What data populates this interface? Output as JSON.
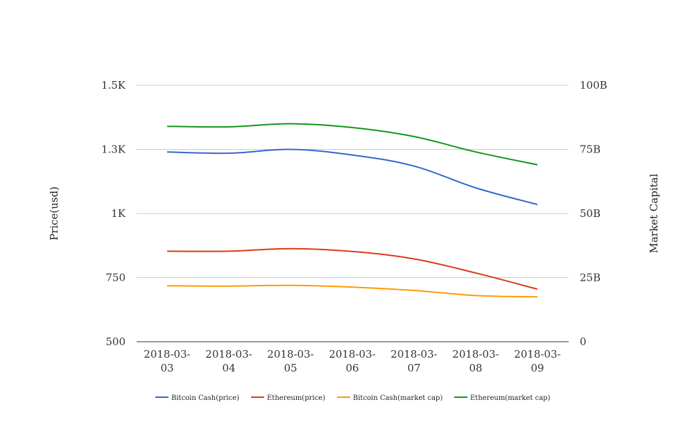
{
  "chart_data": {
    "type": "line",
    "title": "",
    "x": [
      "2018-03-03",
      "2018-03-04",
      "2018-03-05",
      "2018-03-06",
      "2018-03-07",
      "2018-03-08",
      "2018-03-09"
    ],
    "x_labels": [
      [
        "2018-03-",
        "03"
      ],
      [
        "2018-03-",
        "04"
      ],
      [
        "2018-03-",
        "05"
      ],
      [
        "2018-03-",
        "06"
      ],
      [
        "2018-03-",
        "07"
      ],
      [
        "2018-03-",
        "08"
      ],
      [
        "2018-03-",
        "09"
      ]
    ],
    "y_left": {
      "label": "Price(usd)",
      "range": [
        500,
        1500
      ],
      "ticks": [
        500,
        750,
        1000,
        1250,
        1500
      ],
      "tick_labels": [
        "500",
        "750",
        "1K",
        "1.3K",
        "1.5K"
      ]
    },
    "y_right": {
      "label": "Market Capital",
      "range": [
        0,
        100000000000
      ],
      "ticks": [
        0,
        25000000000,
        50000000000,
        75000000000,
        100000000000
      ],
      "tick_labels": [
        "0",
        "25B",
        "50B",
        "75B",
        "100B"
      ]
    },
    "grid": true,
    "legend_position": "bottom",
    "series": [
      {
        "name": "Bitcoin Cash(price)",
        "axis": "left",
        "color": "#3366cc",
        "values": [
          1240,
          1235,
          1250,
          1228,
          1185,
          1100,
          1035
        ]
      },
      {
        "name": "Ethereum(price)",
        "axis": "left",
        "color": "#dc3912",
        "values": [
          853,
          853,
          863,
          852,
          823,
          768,
          705
        ]
      },
      {
        "name": "Bitcoin Cash(market cap)",
        "axis": "right",
        "color": "#ff9900",
        "values": [
          21800000000,
          21700000000,
          22000000000,
          21300000000,
          20000000000,
          18000000000,
          17500000000
        ]
      },
      {
        "name": "Ethereum(market cap)",
        "axis": "right",
        "color": "#109618",
        "values": [
          84000000000,
          83800000000,
          85000000000,
          83500000000,
          80000000000,
          74000000000,
          69000000000
        ]
      }
    ]
  }
}
